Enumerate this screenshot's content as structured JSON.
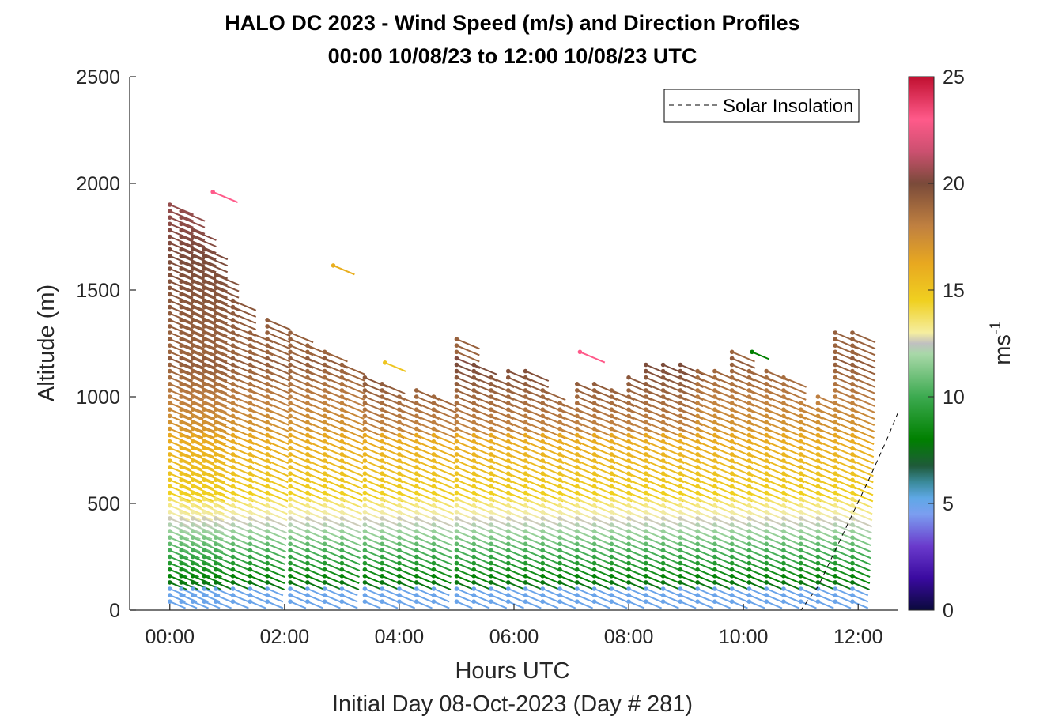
{
  "chart_data": {
    "type": "barb",
    "title": "HALO DC 2023 - Wind Speed (m/s) and Direction Profiles",
    "subtitle": "00:00 10/08/23 to 12:00 10/08/23  UTC",
    "xlabel": "Hours UTC",
    "footer": "Initial Day 08-Oct-2023 (Day # 281)",
    "ylabel": "Altitude (m)",
    "xlim": [
      -0.7,
      12.7
    ],
    "ylim": [
      0,
      2500
    ],
    "x_ticks": [
      0,
      2,
      4,
      6,
      8,
      10,
      12
    ],
    "x_tick_labels": [
      "00:00",
      "02:00",
      "04:00",
      "06:00",
      "08:00",
      "10:00",
      "12:00"
    ],
    "y_ticks": [
      0,
      500,
      1000,
      1500,
      2000,
      2500
    ],
    "y_tick_labels": [
      "0",
      "500",
      "1000",
      "1500",
      "2000",
      "2500"
    ],
    "colorbar": {
      "label": "ms",
      "label_exponent": "-1",
      "range": [
        0,
        25
      ],
      "ticks": [
        0,
        5,
        10,
        15,
        20,
        25
      ],
      "tick_labels": [
        "0",
        "5",
        "10",
        "15",
        "20",
        "25"
      ]
    },
    "legend": {
      "position": "top-right",
      "entries": [
        {
          "name": "Solar Insolation",
          "style": "dashed",
          "color": "#000000"
        }
      ]
    },
    "solar_insolation": {
      "x": [
        -0.7,
        11.0,
        11.3,
        11.6,
        11.9,
        12.2,
        12.5,
        12.7
      ],
      "y": [
        0,
        0,
        110,
        280,
        450,
        620,
        800,
        930
      ]
    },
    "profiles": {
      "times": [
        0.0,
        0.2,
        0.4,
        0.6,
        0.8,
        1.1,
        1.4,
        1.7,
        2.1,
        2.4,
        2.7,
        3.0,
        3.4,
        3.7,
        4.0,
        4.3,
        4.6,
        5.0,
        5.3,
        5.6,
        5.9,
        6.2,
        6.5,
        6.8,
        7.1,
        7.4,
        7.7,
        8.0,
        8.3,
        8.6,
        8.9,
        9.2,
        9.5,
        9.8,
        10.1,
        10.4,
        10.7,
        11.0,
        11.3,
        11.6,
        11.9
      ],
      "tops": [
        1910,
        1870,
        1800,
        1700,
        1570,
        1460,
        1320,
        1370,
        1320,
        1260,
        1230,
        1150,
        1090,
        1070,
        1020,
        1050,
        1000,
        1290,
        1150,
        1090,
        1120,
        1120,
        1050,
        980,
        1080,
        1080,
        1050,
        1100,
        1160,
        1160,
        1160,
        1130,
        1130,
        1210,
        1120,
        1130,
        1100,
        990,
        1020,
        1320,
        1320
      ],
      "altitude_step": 30
    },
    "isolated_barbs": [
      {
        "x": 0.75,
        "y": 1960,
        "speed": 23
      },
      {
        "x": 2.85,
        "y": 1615,
        "speed": 16
      },
      {
        "x": 3.75,
        "y": 1160,
        "speed": 15
      },
      {
        "x": 7.15,
        "y": 1210,
        "speed": 23
      },
      {
        "x": 10.15,
        "y": 1210,
        "speed": 8
      }
    ]
  }
}
